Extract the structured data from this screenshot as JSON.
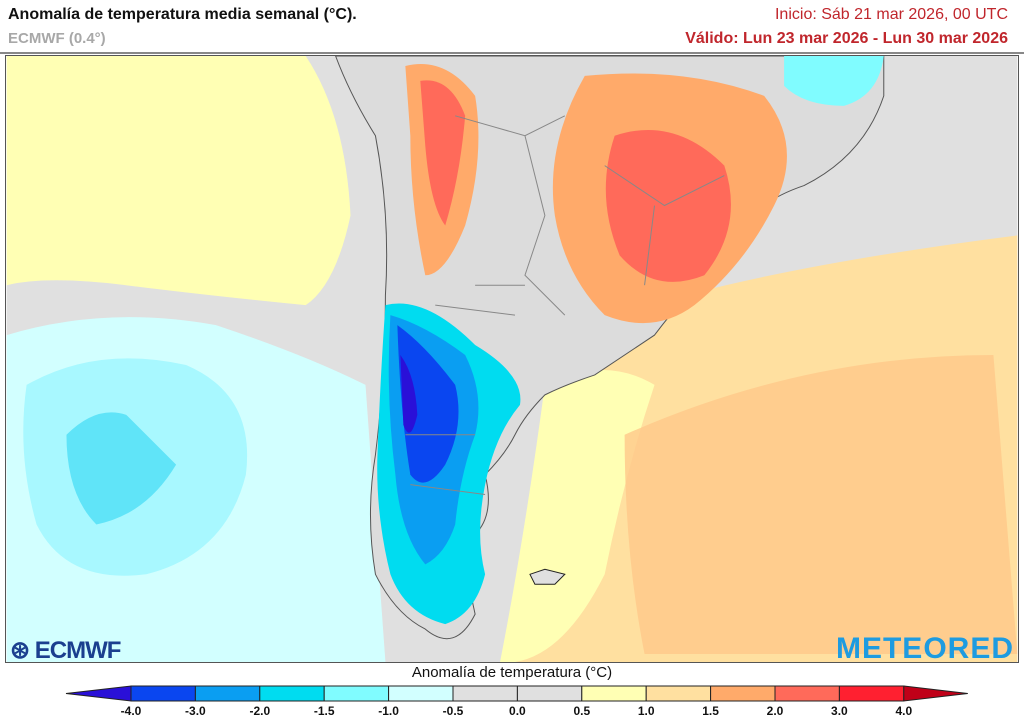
{
  "header": {
    "title": "Anomalía de temperatura media semanal (°C).",
    "model": "ECMWF (0.4°)",
    "init": "Inicio: Sáb 21 mar 2026, 00 UTC",
    "valid": "Válido: Lun 23 mar 2026 - Lun 30 mar 2026"
  },
  "colorbar": {
    "title": "Anomalía de temperatura (°C)",
    "ticks": [
      "-4.0",
      "-3.0",
      "-2.0",
      "-1.5",
      "-1.0",
      "-0.5",
      "0.0",
      "0.5",
      "1.0",
      "1.5",
      "2.0",
      "3.0",
      "4.0"
    ],
    "colors": [
      "#0a46f0",
      "#0a9ef2",
      "#00dcf0",
      "#80fcff",
      "#d2ffff",
      "#e0e0e0",
      "#e0e0e0",
      "#ffffb4",
      "#ffe0a0",
      "#ffaa6a",
      "#ff6a5a",
      "#ff2030"
    ],
    "under_color": "#2a10d8",
    "over_color": "#c00018"
  },
  "logos": {
    "left": "ECMWF",
    "right": "METEORED"
  }
}
